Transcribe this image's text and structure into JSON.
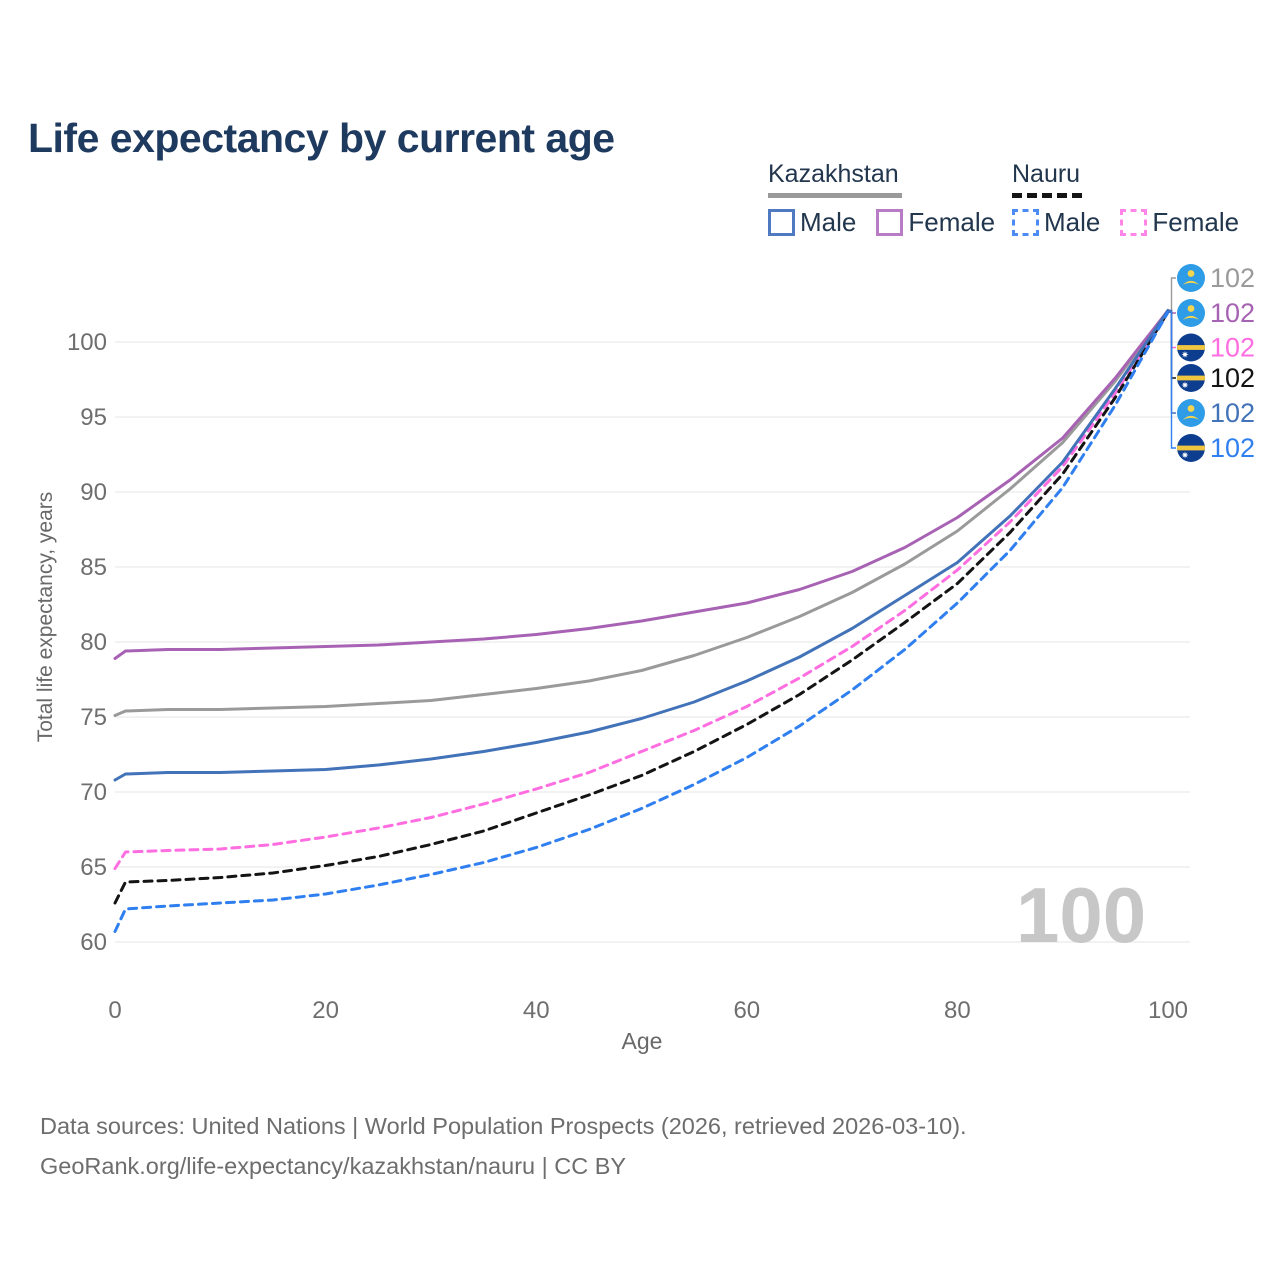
{
  "title": "Life expectancy by current age",
  "watermark": "100",
  "legend": {
    "groups": [
      {
        "label": "Kazakhstan",
        "line_color": "#9a9a9a",
        "line_dashed": false,
        "items": [
          {
            "label": "Male",
            "color": "#4f79c0",
            "dashed": false
          },
          {
            "label": "Female",
            "color": "#b77cc4",
            "dashed": false
          }
        ]
      },
      {
        "label": "Nauru",
        "line_color": "#141414",
        "line_dashed": true,
        "items": [
          {
            "label": "Male",
            "color": "#4c8bf5",
            "dashed": true
          },
          {
            "label": "Female",
            "color": "#ff85e8",
            "dashed": true
          }
        ]
      }
    ]
  },
  "footer": {
    "line1": "Data sources: United Nations | World Population Prospects (2026, retrieved 2026-03-10).",
    "line2": "GeoRank.org/life-expectancy/kazakhstan/nauru | CC BY"
  },
  "chart_data": {
    "type": "line",
    "title": "Life expectancy by current age",
    "xlabel": "Age",
    "ylabel": "Total life expectancy, years",
    "xlim": [
      0,
      100
    ],
    "ylim": [
      58.5,
      103.5
    ],
    "xticks": [
      0,
      20,
      40,
      60,
      80,
      100
    ],
    "yticks": [
      60,
      65,
      70,
      75,
      80,
      85,
      90,
      95,
      100
    ],
    "grid": "horizontal",
    "gridline_color": "#ebebeb",
    "tick_label_color": "#6e6e6e",
    "x": [
      0,
      1,
      5,
      10,
      15,
      20,
      25,
      30,
      35,
      40,
      45,
      50,
      55,
      60,
      65,
      70,
      75,
      80,
      85,
      90,
      95,
      100
    ],
    "series": [
      {
        "name": "Kazakhstan",
        "color": "#9a9a9a",
        "dashed": false,
        "flag": "kz",
        "end_label": "102",
        "label_color": "#9a9a9a",
        "values": [
          75.1,
          75.4,
          75.5,
          75.5,
          75.6,
          75.7,
          75.9,
          76.1,
          76.5,
          76.9,
          77.4,
          78.1,
          79.1,
          80.3,
          81.7,
          83.3,
          85.2,
          87.4,
          90.2,
          93.3,
          97.4,
          102.1
        ]
      },
      {
        "name": "Kazakhstan Female",
        "color": "#a862b4",
        "dashed": false,
        "flag": "kz",
        "end_label": "102",
        "label_color": "#a763b3",
        "values": [
          78.9,
          79.4,
          79.5,
          79.5,
          79.6,
          79.7,
          79.8,
          80.0,
          80.2,
          80.5,
          80.9,
          81.4,
          82.0,
          82.6,
          83.5,
          84.7,
          86.3,
          88.3,
          90.8,
          93.6,
          97.6,
          102.1
        ]
      },
      {
        "name": "Nauru Female",
        "color": "#ff6ee0",
        "dashed": true,
        "flag": "nr",
        "end_label": "102",
        "label_color": "#ff6ee0",
        "values": [
          64.9,
          66.0,
          66.1,
          66.2,
          66.5,
          67.0,
          67.6,
          68.3,
          69.2,
          70.2,
          71.3,
          72.7,
          74.1,
          75.7,
          77.6,
          79.7,
          82.1,
          84.8,
          88.0,
          91.7,
          96.6,
          102.0
        ]
      },
      {
        "name": "Nauru",
        "color": "#141414",
        "dashed": true,
        "flag": "nr",
        "end_label": "102",
        "label_color": "#141414",
        "values": [
          62.6,
          64.0,
          64.1,
          64.3,
          64.6,
          65.1,
          65.7,
          66.5,
          67.4,
          68.6,
          69.8,
          71.1,
          72.7,
          74.5,
          76.5,
          78.8,
          81.3,
          83.9,
          87.3,
          91.2,
          96.3,
          102.0
        ]
      },
      {
        "name": "Kazakhstan Male",
        "color": "#4272b8",
        "dashed": false,
        "flag": "kz",
        "end_label": "102",
        "label_color": "#4272b8",
        "values": [
          70.8,
          71.2,
          71.3,
          71.3,
          71.4,
          71.5,
          71.8,
          72.2,
          72.7,
          73.3,
          74.0,
          74.9,
          76.0,
          77.4,
          79.0,
          80.9,
          83.1,
          85.3,
          88.4,
          92.0,
          96.9,
          102.1
        ]
      },
      {
        "name": "Nauru Male",
        "color": "#2f7ff0",
        "dashed": true,
        "flag": "nr",
        "end_label": "102",
        "label_color": "#2f7ff0",
        "values": [
          60.7,
          62.2,
          62.4,
          62.6,
          62.8,
          63.2,
          63.8,
          64.5,
          65.3,
          66.3,
          67.5,
          68.9,
          70.5,
          72.3,
          74.4,
          76.8,
          79.5,
          82.6,
          86.1,
          90.3,
          95.8,
          102.0
        ]
      }
    ]
  }
}
